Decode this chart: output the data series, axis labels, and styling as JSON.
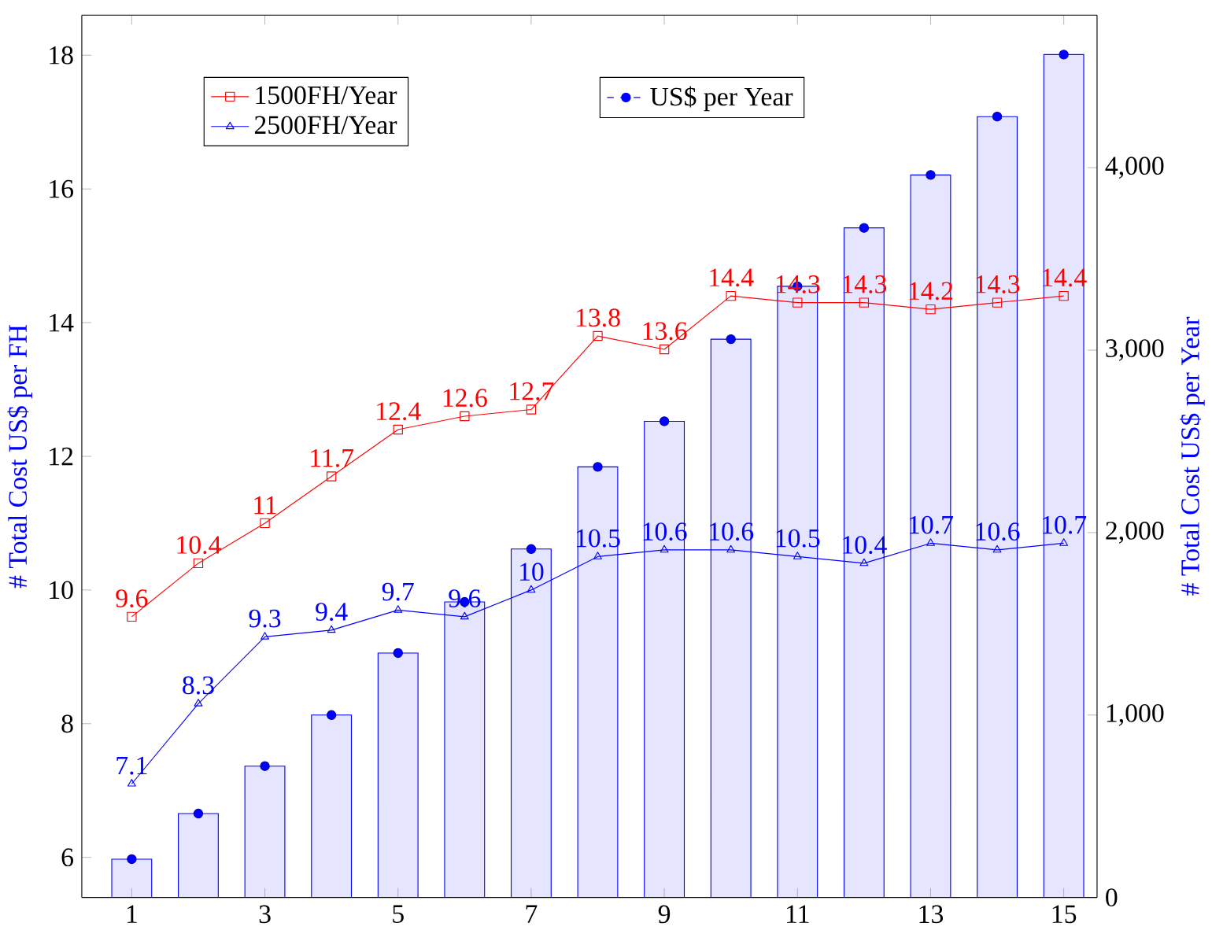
{
  "chart_data": {
    "type": "line",
    "ylabel": "# Total Cost US$ per FH",
    "y2label": "# Total Cost US$ per Year",
    "x": [
      1,
      2,
      3,
      4,
      5,
      6,
      7,
      8,
      9,
      10,
      11,
      12,
      13,
      14,
      15
    ],
    "xlim": [
      0.25,
      15.5
    ],
    "xticks": [
      1,
      3,
      5,
      7,
      9,
      11,
      13,
      15
    ],
    "ylim": [
      5.4,
      18.6
    ],
    "yticks": [
      6,
      8,
      10,
      12,
      14,
      16,
      18
    ],
    "y2lim": [
      0,
      4836
    ],
    "y2ticks": [
      0,
      {
        "value": 1000,
        "label": "1,000"
      },
      {
        "value": 2000,
        "label": "2,000"
      },
      {
        "value": 3000,
        "label": "3,000"
      },
      {
        "value": 4000,
        "label": "4,000"
      }
    ],
    "legend": "top",
    "series": [
      {
        "name": "US$ per Year",
        "type": "bar",
        "axis": "y2",
        "color": "#0000ff",
        "values": [
          210,
          460,
          720,
          1000,
          1340,
          1620,
          1910,
          2360,
          2610,
          3060,
          3350,
          3670,
          3960,
          4280,
          4620
        ]
      },
      {
        "type": "scatter",
        "axis": "y2",
        "color": "#0000ff",
        "marker": "circle",
        "values": [
          210,
          460,
          720,
          1000,
          1340,
          1620,
          1910,
          2360,
          2610,
          3060,
          3350,
          3670,
          3960,
          4280,
          4620
        ]
      },
      {
        "name": "1500FH/Year",
        "color": "#ff0000",
        "marker": "square",
        "values": [
          9.6,
          10.4,
          11,
          11.7,
          12.4,
          12.6,
          12.7,
          13.8,
          13.6,
          14.4,
          14.3,
          14.3,
          14.2,
          14.3,
          14.4
        ],
        "value_labels": [
          "9.6",
          "10.4",
          "11",
          "11.7",
          "12.4",
          "12.6",
          "12.7",
          "13.8",
          "13.6",
          "14.4",
          "14.3",
          "14.3",
          "14.2",
          "14.3",
          "14.4"
        ]
      },
      {
        "name": "2500FH/Year",
        "color": "#0000ff",
        "marker": "triangle",
        "values": [
          7.1,
          8.3,
          9.3,
          9.4,
          9.7,
          9.6,
          10,
          10.5,
          10.6,
          10.6,
          10.5,
          10.4,
          10.7,
          10.6,
          10.7
        ],
        "value_labels": [
          "7.1",
          "8.3",
          "9.3",
          "9.4",
          "9.7",
          "9.6",
          "10",
          "10.5",
          "10.6",
          "10.6",
          "10.5",
          "10.4",
          "10.7",
          "10.6",
          "10.7"
        ]
      }
    ]
  }
}
